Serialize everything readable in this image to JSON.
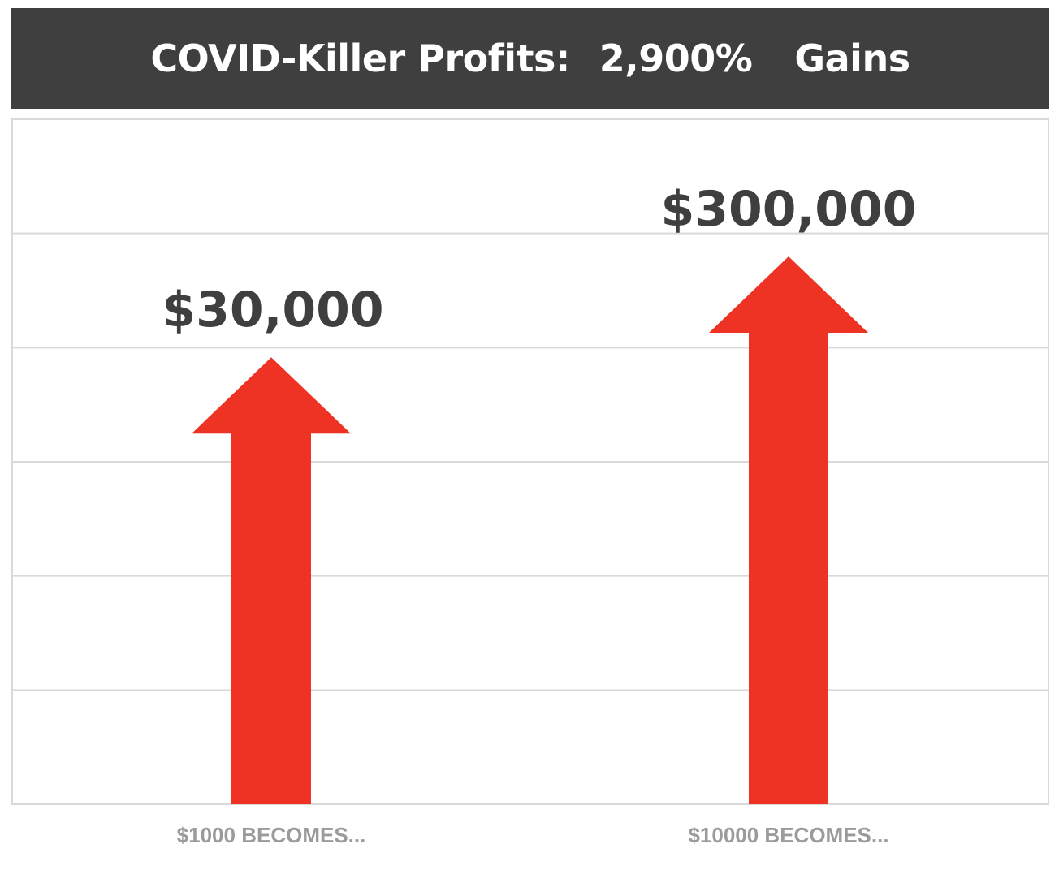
{
  "header": {
    "title": "COVID-Killer Profits:",
    "percent": "2,900%",
    "gains": "Gains"
  },
  "chart_data": {
    "type": "bar",
    "categories": [
      "$1000 BECOMES...",
      "$10000 BECOMES..."
    ],
    "values": [
      30000,
      300000
    ],
    "data_labels": [
      "$30,000",
      "$300,000"
    ],
    "title": "COVID-Killer Profits: 2,900% Gains",
    "xlabel": "",
    "ylabel": "",
    "grid": true,
    "gridline_count": 6,
    "legend": "none",
    "mark_shape": "up-arrow",
    "colors": {
      "arrow": "#ee3224",
      "label": "#3f3f3f",
      "category": "#9b9b9b",
      "grid": "#d9d9d9",
      "title_bg": "#3f3f3f",
      "title_text": "#ffffff"
    }
  }
}
